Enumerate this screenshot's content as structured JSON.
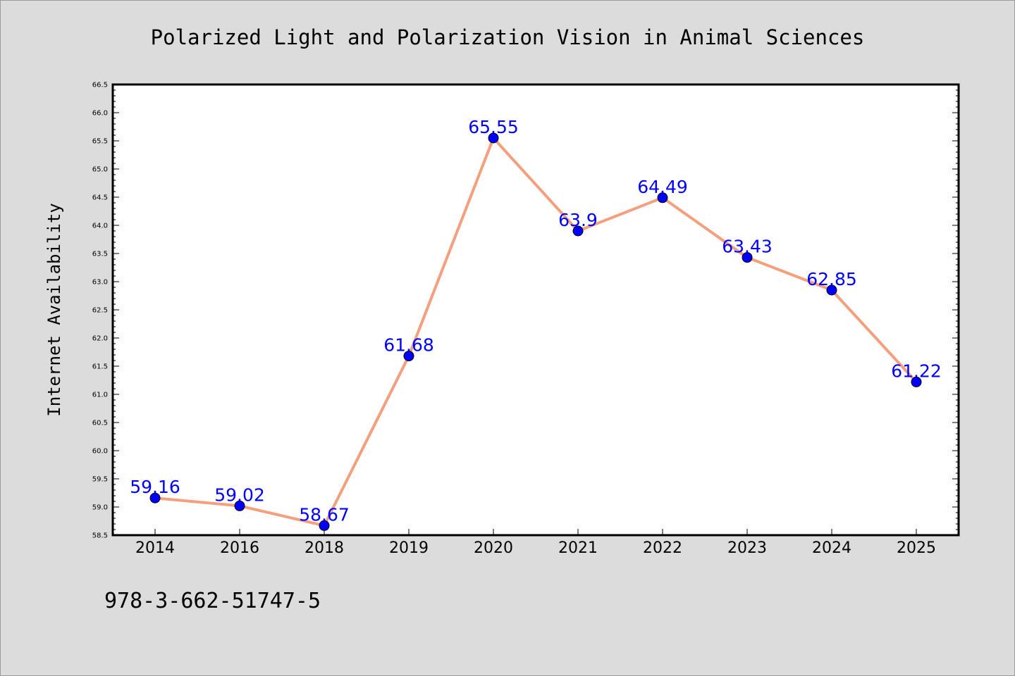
{
  "chart_data": {
    "type": "line",
    "title": "Polarized Light and Polarization Vision in Animal Sciences",
    "xlabel": "",
    "ylabel": "Internet Availability",
    "categories": [
      "2014",
      "2016",
      "2018",
      "2019",
      "2020",
      "2021",
      "2022",
      "2023",
      "2024",
      "2025"
    ],
    "series": [
      {
        "values": [
          59.16,
          59.02,
          58.67,
          61.68,
          65.55,
          63.9,
          64.49,
          63.43,
          62.85,
          61.22
        ],
        "labels": [
          "59.16",
          "59.02",
          "58.67",
          "61.68",
          "65.55",
          "63.9",
          "64.49",
          "63.43",
          "62.85",
          "61.22"
        ]
      }
    ],
    "ylim": [
      58.5,
      66.5
    ],
    "yticks": [
      "58.5",
      "59.0",
      "59.5",
      "60.0",
      "60.5",
      "61.0",
      "61.5",
      "62.0",
      "62.5",
      "63.0",
      "63.5",
      "64.0",
      "64.5",
      "65.0",
      "65.5",
      "66.0",
      "66.5"
    ],
    "grid": false,
    "line_color": "#f4a07e",
    "marker_color": "#0000ff",
    "label_color": "#0000ff",
    "background": "#dcdcdc",
    "plot_background": "#ffffff"
  },
  "footer_text": "978-3-662-51747-5"
}
